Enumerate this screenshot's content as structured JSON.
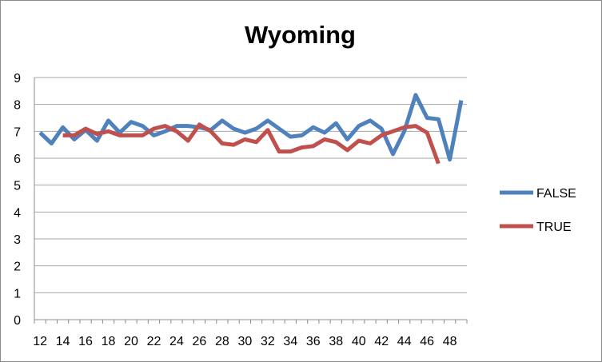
{
  "chart_data": {
    "type": "line",
    "title": "Wyoming",
    "xlabel": "",
    "ylabel": "",
    "ylim": [
      0,
      9
    ],
    "yticks": [
      "0",
      "1",
      "2",
      "3",
      "4",
      "5",
      "6",
      "7",
      "8",
      "9"
    ],
    "xticks": [
      "12",
      "14",
      "16",
      "18",
      "20",
      "22",
      "24",
      "26",
      "28",
      "30",
      "32",
      "34",
      "36",
      "38",
      "40",
      "42",
      "44",
      "46",
      "48"
    ],
    "grid": true,
    "legend_position": "right",
    "x": [
      12,
      13,
      14,
      15,
      16,
      17,
      18,
      19,
      20,
      21,
      22,
      23,
      24,
      25,
      26,
      27,
      28,
      29,
      30,
      31,
      32,
      33,
      34,
      35,
      36,
      37,
      38,
      39,
      40,
      41,
      42,
      43,
      44,
      45,
      46,
      47,
      48,
      49
    ],
    "series": [
      {
        "name": "FALSE",
        "color": "#4f81bd",
        "values": [
          6.95,
          6.55,
          7.15,
          6.7,
          7.05,
          6.65,
          7.4,
          6.95,
          7.35,
          7.2,
          6.85,
          7.0,
          7.2,
          7.2,
          7.15,
          7.05,
          7.4,
          7.1,
          6.95,
          7.1,
          7.4,
          7.1,
          6.8,
          6.85,
          7.15,
          6.95,
          7.3,
          6.7,
          7.2,
          7.4,
          7.1,
          6.15,
          7.0,
          8.35,
          7.5,
          7.45,
          5.95,
          8.15
        ]
      },
      {
        "name": "TRUE",
        "color": "#c0504d",
        "values": [
          null,
          null,
          6.85,
          6.85,
          7.1,
          6.9,
          7.0,
          6.85,
          6.85,
          6.85,
          7.1,
          7.2,
          7.0,
          6.65,
          7.25,
          7.0,
          6.55,
          6.5,
          6.7,
          6.6,
          7.05,
          6.25,
          6.25,
          6.4,
          6.45,
          6.7,
          6.6,
          6.3,
          6.65,
          6.55,
          6.85,
          7.0,
          7.15,
          7.2,
          6.95,
          5.8,
          null,
          null
        ]
      }
    ]
  }
}
